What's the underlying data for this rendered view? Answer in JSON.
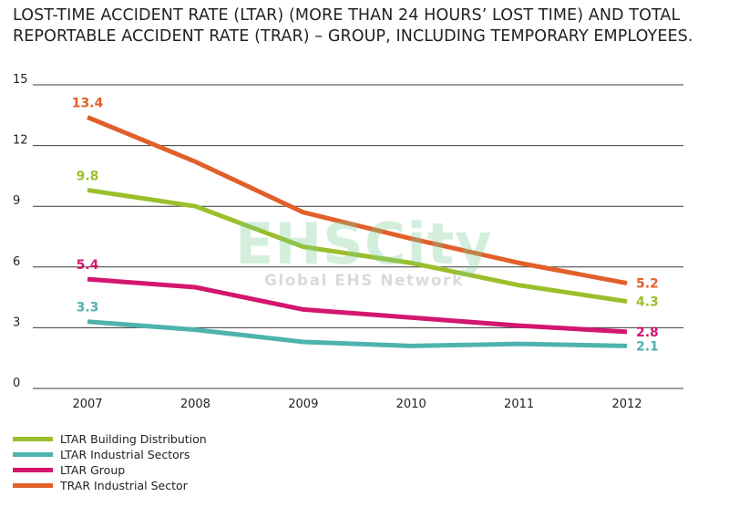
{
  "chart_data": {
    "type": "line",
    "title_lines": [
      "LOST-TIME ACCIDENT RATE (LTAR) (MORE THAN 24 HOURS’ LOST TIME) AND TOTAL",
      "REPORTABLE ACCIDENT RATE (TRAR) – GROUP, INCLUDING TEMPORARY EMPLOYEES."
    ],
    "categories": [
      "2007",
      "2008",
      "2009",
      "2010",
      "2011",
      "2012"
    ],
    "y_ticks": [
      "0",
      "3",
      "6",
      "9",
      "12",
      "15"
    ],
    "ylim": [
      0,
      15
    ],
    "grid": true,
    "legend_position": "bottom-left",
    "series": [
      {
        "name": "LTAR Building Distribution",
        "color": "#9bbf2c",
        "values": [
          9.8,
          9.0,
          7.0,
          6.2,
          5.1,
          4.3
        ],
        "first_label": "9.8",
        "last_label": "4.3"
      },
      {
        "name": "LTAR Industrial Sectors",
        "color": "#4fb3ad",
        "values": [
          3.3,
          2.9,
          2.3,
          2.1,
          2.2,
          2.1
        ],
        "first_label": "3.3",
        "last_label": "2.1"
      },
      {
        "name": "LTAR Group",
        "color": "#d3166e",
        "values": [
          5.4,
          5.0,
          3.9,
          3.5,
          3.1,
          2.8
        ],
        "first_label": "5.4",
        "last_label": "2.8"
      },
      {
        "name": "TRAR Industrial Sector",
        "color": "#e1602a",
        "values": [
          13.4,
          11.2,
          8.7,
          7.4,
          6.2,
          5.2
        ],
        "first_label": "13.4",
        "last_label": "5.2"
      }
    ]
  },
  "watermark": {
    "main": "EHSCity",
    "sub": "Global EHS Network"
  }
}
